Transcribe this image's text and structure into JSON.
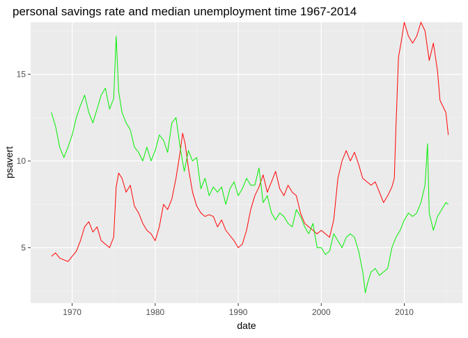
{
  "chart_data": {
    "type": "line",
    "title": "personal savings rate and median unemployment time 1967-2014",
    "xlabel": "date",
    "ylabel": "psavert",
    "xlim": [
      1965.0,
      2017.0
    ],
    "ylim": [
      1.8,
      18.0
    ],
    "xticks": [
      1970,
      1980,
      1990,
      2000,
      2010
    ],
    "yticks": [
      5,
      10,
      15
    ],
    "grid": true,
    "legend": "none",
    "series": [
      {
        "color": "#ff0000",
        "points": [
          [
            1967.5,
            4.5
          ],
          [
            1968.0,
            4.7
          ],
          [
            1968.5,
            4.4
          ],
          [
            1969.0,
            4.3
          ],
          [
            1969.5,
            4.2
          ],
          [
            1970.0,
            4.5
          ],
          [
            1970.5,
            4.8
          ],
          [
            1971.0,
            5.4
          ],
          [
            1971.5,
            6.2
          ],
          [
            1972.0,
            6.5
          ],
          [
            1972.5,
            5.9
          ],
          [
            1973.0,
            6.2
          ],
          [
            1973.5,
            5.4
          ],
          [
            1974.0,
            5.2
          ],
          [
            1974.5,
            5.0
          ],
          [
            1975.0,
            5.6
          ],
          [
            1975.3,
            8.5
          ],
          [
            1975.6,
            9.3
          ],
          [
            1976.0,
            9.0
          ],
          [
            1976.5,
            8.2
          ],
          [
            1977.0,
            8.6
          ],
          [
            1977.5,
            7.4
          ],
          [
            1978.0,
            7.0
          ],
          [
            1978.5,
            6.4
          ],
          [
            1979.0,
            6.0
          ],
          [
            1979.5,
            5.8
          ],
          [
            1980.0,
            5.4
          ],
          [
            1980.5,
            6.2
          ],
          [
            1981.0,
            7.5
          ],
          [
            1981.5,
            7.2
          ],
          [
            1982.0,
            7.8
          ],
          [
            1982.5,
            9.0
          ],
          [
            1983.0,
            10.5
          ],
          [
            1983.3,
            11.6
          ],
          [
            1983.6,
            11.0
          ],
          [
            1984.0,
            9.6
          ],
          [
            1984.5,
            8.2
          ],
          [
            1985.0,
            7.4
          ],
          [
            1985.5,
            7.0
          ],
          [
            1986.0,
            6.8
          ],
          [
            1986.5,
            6.9
          ],
          [
            1987.0,
            6.8
          ],
          [
            1987.5,
            6.2
          ],
          [
            1988.0,
            6.6
          ],
          [
            1988.5,
            6.0
          ],
          [
            1989.0,
            5.7
          ],
          [
            1989.5,
            5.4
          ],
          [
            1990.0,
            5.0
          ],
          [
            1990.5,
            5.2
          ],
          [
            1991.0,
            6.0
          ],
          [
            1991.5,
            7.2
          ],
          [
            1992.0,
            8.0
          ],
          [
            1992.5,
            8.5
          ],
          [
            1993.0,
            9.2
          ],
          [
            1993.5,
            8.2
          ],
          [
            1994.0,
            8.8
          ],
          [
            1994.5,
            9.4
          ],
          [
            1995.0,
            8.4
          ],
          [
            1995.5,
            8.0
          ],
          [
            1996.0,
            8.6
          ],
          [
            1996.5,
            8.2
          ],
          [
            1997.0,
            8.0
          ],
          [
            1997.5,
            7.0
          ],
          [
            1998.0,
            6.4
          ],
          [
            1998.5,
            6.2
          ],
          [
            1999.0,
            6.0
          ],
          [
            1999.5,
            5.8
          ],
          [
            2000.0,
            6.0
          ],
          [
            2000.5,
            5.8
          ],
          [
            2001.0,
            5.6
          ],
          [
            2001.5,
            6.6
          ],
          [
            2002.0,
            9.0
          ],
          [
            2002.5,
            10.0
          ],
          [
            2003.0,
            10.6
          ],
          [
            2003.5,
            10.0
          ],
          [
            2004.0,
            10.5
          ],
          [
            2004.5,
            9.8
          ],
          [
            2005.0,
            9.0
          ],
          [
            2005.5,
            8.8
          ],
          [
            2006.0,
            8.6
          ],
          [
            2006.5,
            8.8
          ],
          [
            2007.0,
            8.2
          ],
          [
            2007.5,
            7.6
          ],
          [
            2008.0,
            8.0
          ],
          [
            2008.5,
            8.5
          ],
          [
            2008.8,
            9.0
          ],
          [
            2009.0,
            12.0
          ],
          [
            2009.3,
            16.0
          ],
          [
            2009.6,
            16.8
          ],
          [
            2010.0,
            18.0
          ],
          [
            2010.5,
            17.2
          ],
          [
            2011.0,
            16.8
          ],
          [
            2011.5,
            17.2
          ],
          [
            2012.0,
            18.0
          ],
          [
            2012.5,
            17.5
          ],
          [
            2013.0,
            15.8
          ],
          [
            2013.5,
            16.8
          ],
          [
            2014.0,
            15.2
          ],
          [
            2014.3,
            13.5
          ],
          [
            2014.6,
            13.2
          ],
          [
            2015.0,
            12.8
          ],
          [
            2015.3,
            11.5
          ]
        ]
      },
      {
        "color": "#00ee00",
        "points": [
          [
            1967.5,
            12.8
          ],
          [
            1968.0,
            12.0
          ],
          [
            1968.5,
            10.8
          ],
          [
            1969.0,
            10.2
          ],
          [
            1969.5,
            10.8
          ],
          [
            1970.0,
            11.5
          ],
          [
            1970.5,
            12.5
          ],
          [
            1971.0,
            13.2
          ],
          [
            1971.5,
            13.8
          ],
          [
            1972.0,
            12.8
          ],
          [
            1972.5,
            12.2
          ],
          [
            1973.0,
            13.0
          ],
          [
            1973.5,
            13.8
          ],
          [
            1974.0,
            14.2
          ],
          [
            1974.5,
            13.0
          ],
          [
            1975.0,
            13.6
          ],
          [
            1975.3,
            17.2
          ],
          [
            1975.6,
            14.0
          ],
          [
            1976.0,
            12.8
          ],
          [
            1976.5,
            12.2
          ],
          [
            1977.0,
            11.8
          ],
          [
            1977.5,
            10.8
          ],
          [
            1978.0,
            10.5
          ],
          [
            1978.5,
            10.0
          ],
          [
            1979.0,
            10.8
          ],
          [
            1979.5,
            10.0
          ],
          [
            1980.0,
            10.6
          ],
          [
            1980.5,
            11.5
          ],
          [
            1981.0,
            11.2
          ],
          [
            1981.5,
            10.5
          ],
          [
            1982.0,
            12.2
          ],
          [
            1982.5,
            12.5
          ],
          [
            1983.0,
            10.8
          ],
          [
            1983.5,
            9.4
          ],
          [
            1984.0,
            10.6
          ],
          [
            1984.5,
            10.0
          ],
          [
            1985.0,
            10.2
          ],
          [
            1985.5,
            8.4
          ],
          [
            1986.0,
            9.0
          ],
          [
            1986.5,
            8.0
          ],
          [
            1987.0,
            8.5
          ],
          [
            1987.5,
            8.2
          ],
          [
            1988.0,
            8.5
          ],
          [
            1988.5,
            7.5
          ],
          [
            1989.0,
            8.4
          ],
          [
            1989.5,
            8.8
          ],
          [
            1990.0,
            8.0
          ],
          [
            1990.5,
            8.4
          ],
          [
            1991.0,
            9.0
          ],
          [
            1991.5,
            8.6
          ],
          [
            1992.0,
            8.6
          ],
          [
            1992.5,
            9.6
          ],
          [
            1993.0,
            7.6
          ],
          [
            1993.5,
            8.0
          ],
          [
            1994.0,
            7.0
          ],
          [
            1994.5,
            6.6
          ],
          [
            1995.0,
            7.0
          ],
          [
            1995.5,
            6.8
          ],
          [
            1996.0,
            6.4
          ],
          [
            1996.5,
            6.2
          ],
          [
            1997.0,
            7.2
          ],
          [
            1997.5,
            6.8
          ],
          [
            1998.0,
            6.2
          ],
          [
            1998.5,
            5.8
          ],
          [
            1999.0,
            6.4
          ],
          [
            1999.5,
            5.0
          ],
          [
            2000.0,
            5.0
          ],
          [
            2000.5,
            4.6
          ],
          [
            2001.0,
            4.8
          ],
          [
            2001.5,
            5.8
          ],
          [
            2002.0,
            5.4
          ],
          [
            2002.5,
            5.0
          ],
          [
            2003.0,
            5.6
          ],
          [
            2003.5,
            5.8
          ],
          [
            2004.0,
            5.6
          ],
          [
            2004.5,
            4.8
          ],
          [
            2005.0,
            3.6
          ],
          [
            2005.3,
            2.4
          ],
          [
            2005.6,
            3.0
          ],
          [
            2006.0,
            3.6
          ],
          [
            2006.5,
            3.8
          ],
          [
            2007.0,
            3.4
          ],
          [
            2007.5,
            3.6
          ],
          [
            2008.0,
            3.8
          ],
          [
            2008.5,
            5.0
          ],
          [
            2009.0,
            5.6
          ],
          [
            2009.5,
            6.0
          ],
          [
            2010.0,
            6.6
          ],
          [
            2010.5,
            7.0
          ],
          [
            2011.0,
            6.8
          ],
          [
            2011.5,
            7.0
          ],
          [
            2012.0,
            7.6
          ],
          [
            2012.5,
            8.6
          ],
          [
            2012.8,
            11.0
          ],
          [
            2013.0,
            7.0
          ],
          [
            2013.5,
            6.0
          ],
          [
            2014.0,
            6.8
          ],
          [
            2014.5,
            7.2
          ],
          [
            2015.0,
            7.6
          ],
          [
            2015.3,
            7.5
          ]
        ]
      }
    ]
  }
}
